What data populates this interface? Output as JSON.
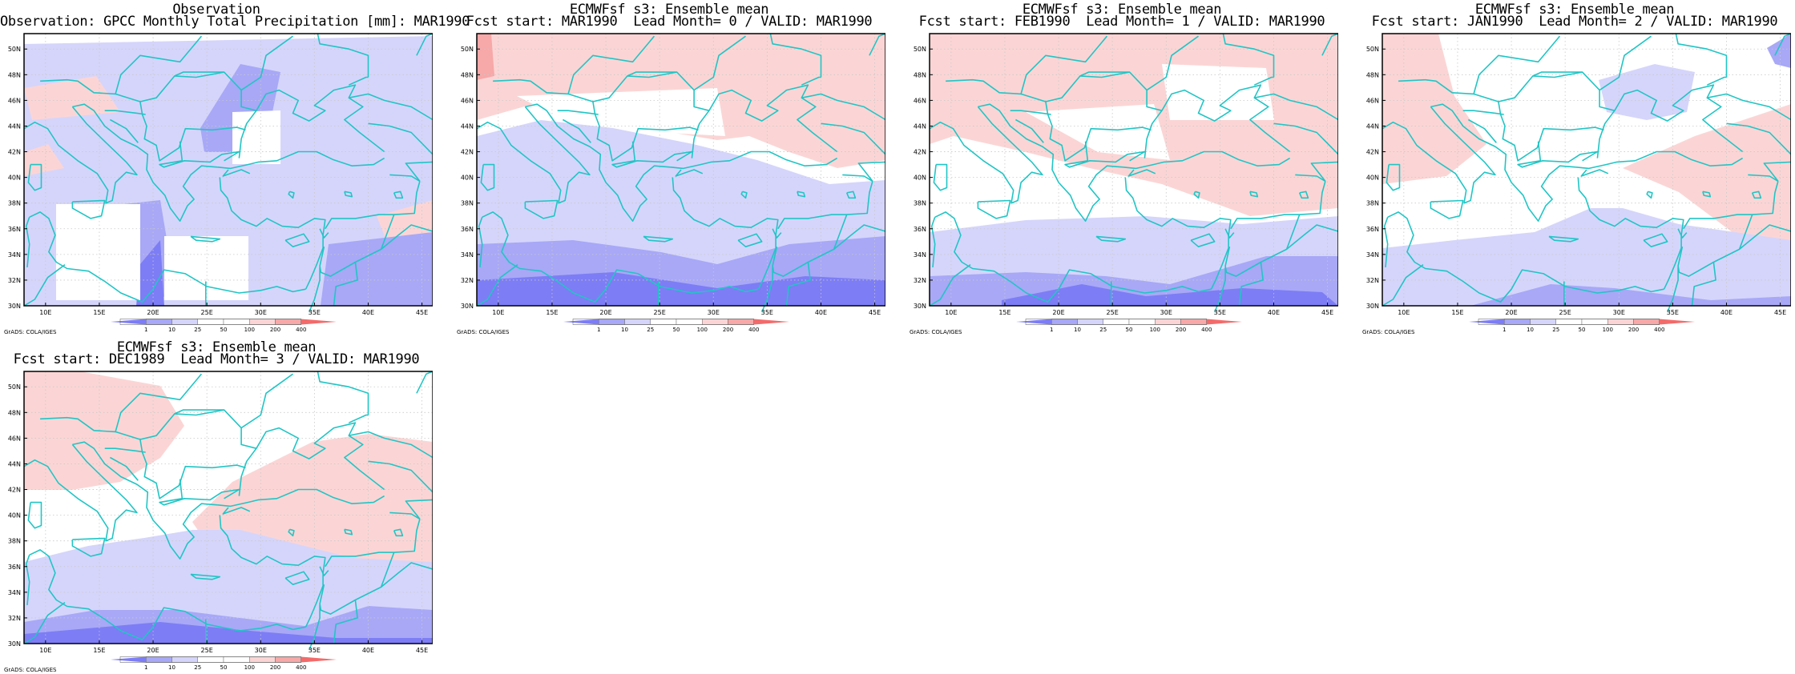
{
  "colors": {
    "dark_blue": "#7d7df5",
    "mid_blue": "#a8a8f7",
    "light_blue": "#d5d5fb",
    "light_red": "#fbd5d5",
    "mid_red": "#f7a8a8",
    "dark_red": "#f26b6b",
    "coast": "#21c5c5",
    "frame": "#000000",
    "grid": "#c8c8c8"
  },
  "axes": {
    "lat_labels": [
      "30N",
      "32N",
      "34N",
      "36N",
      "38N",
      "40N",
      "42N",
      "44N",
      "46N",
      "48N",
      "50N"
    ],
    "lon_labels": [
      "10E",
      "15E",
      "20E",
      "25E",
      "30E",
      "35E",
      "40E",
      "45E"
    ]
  },
  "colorbar": {
    "levels": [
      "1",
      "10",
      "25",
      "50",
      "100",
      "200",
      "400"
    ]
  },
  "footer_text": "GrADS: COLA/IGES",
  "panels": [
    {
      "title_line1": "Observation",
      "title_line2": "Observation: GPCC Monthly Total Precipitation [mm]: MAR1990",
      "kind": "observation"
    },
    {
      "title_line1": "ECMWFsf s3: Ensemble mean",
      "title_line2": "Fcst start: MAR1990  Lead Month= 0 / VALID: MAR1990",
      "kind": "lead0"
    },
    {
      "title_line1": "ECMWFsf s3: Ensemble mean",
      "title_line2": "Fcst start: FEB1990  Lead Month= 1 / VALID: MAR1990",
      "kind": "lead1"
    },
    {
      "title_line1": "ECMWFsf s3: Ensemble mean",
      "title_line2": "Fcst start: JAN1990  Lead Month= 2 / VALID: MAR1990",
      "kind": "lead2"
    },
    {
      "title_line1": "ECMWFsf s3: Ensemble mean",
      "title_line2": "Fcst start: DEC1989  Lead Month= 3 / VALID: MAR1990",
      "kind": "lead3"
    }
  ]
}
